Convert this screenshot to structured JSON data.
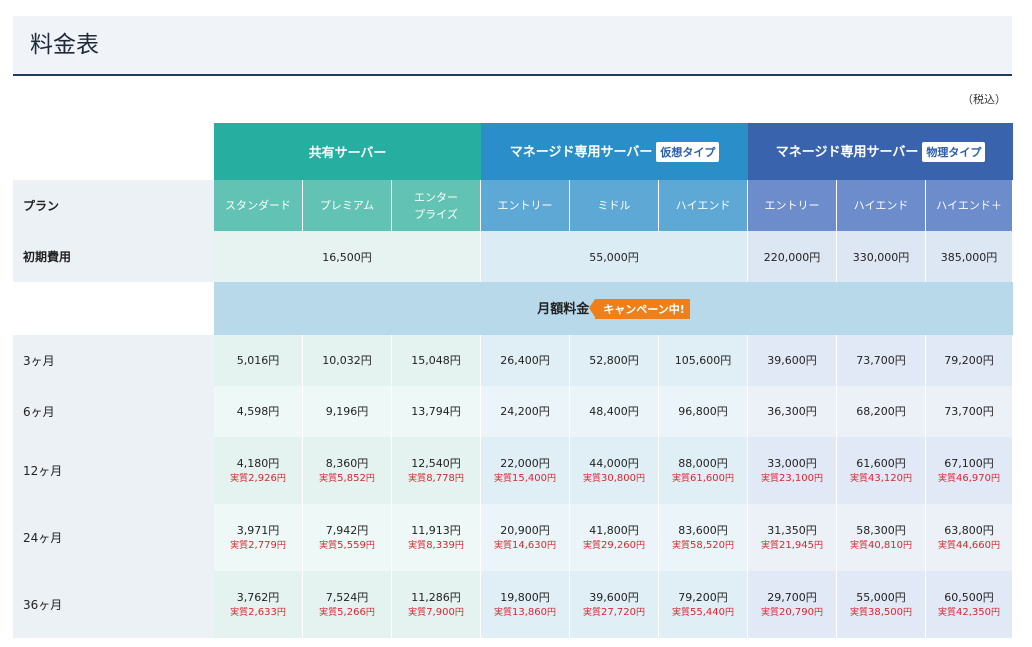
{
  "title": "料金表",
  "tax_note": "（税込）",
  "groups": {
    "shared": {
      "label": "共有サーバー"
    },
    "virtual": {
      "label": "マネージド専用サーバー",
      "tag": "仮想タイプ"
    },
    "physical": {
      "label": "マネージド専用サーバー",
      "tag": "物理タイプ"
    }
  },
  "plan_label": "プラン",
  "plans": {
    "standard": "スタンダード",
    "premium": "プレミアム",
    "enterprise_1": "エンター",
    "enterprise_2": "プライズ",
    "v_entry": "エントリー",
    "v_middle": "ミドル",
    "v_highend": "ハイエンド",
    "p_entry": "エントリー",
    "p_highend": "ハイエンド",
    "p_highend_plus": "ハイエンド＋"
  },
  "initial": {
    "label": "初期費用",
    "shared": "16,500円",
    "virtual": "55,000円",
    "p_entry": "220,000円",
    "p_highend": "330,000円",
    "p_highend_plus": "385,000円"
  },
  "monthly": {
    "label": "月額料金",
    "campaign": "キャンペーン中!"
  },
  "rows": [
    {
      "label": "3ヶ月",
      "prices": [
        "5,016円",
        "10,032円",
        "15,048円",
        "26,400円",
        "52,800円",
        "105,600円",
        "39,600円",
        "73,700円",
        "79,200円"
      ]
    },
    {
      "label": "6ヶ月",
      "prices": [
        "4,598円",
        "9,196円",
        "13,794円",
        "24,200円",
        "48,400円",
        "96,800円",
        "36,300円",
        "68,200円",
        "73,700円"
      ]
    },
    {
      "label": "12ヶ月",
      "prices": [
        "4,180円",
        "8,360円",
        "12,540円",
        "22,000円",
        "44,000円",
        "88,000円",
        "33,000円",
        "61,600円",
        "67,100円"
      ],
      "effective": [
        "2,926",
        "5,852",
        "8,778",
        "15,400",
        "30,800",
        "61,600",
        "23,100",
        "43,120",
        "46,970"
      ]
    },
    {
      "label": "24ヶ月",
      "prices": [
        "3,971円",
        "7,942円",
        "11,913円",
        "20,900円",
        "41,800円",
        "83,600円",
        "31,350円",
        "58,300円",
        "63,800円"
      ],
      "effective": [
        "2,779",
        "5,559",
        "8,339",
        "14,630",
        "29,260",
        "58,520",
        "21,945",
        "40,810",
        "44,660"
      ]
    },
    {
      "label": "36ヶ月",
      "prices": [
        "3,762円",
        "7,524円",
        "11,286円",
        "19,800円",
        "39,600円",
        "79,200円",
        "29,700円",
        "55,000円",
        "60,500円"
      ],
      "effective": [
        "2,633",
        "5,266",
        "7,900",
        "13,860",
        "27,720",
        "55,440",
        "20,790",
        "38,500",
        "42,350"
      ]
    }
  ],
  "effective_prefix": "実質",
  "yen": "円"
}
